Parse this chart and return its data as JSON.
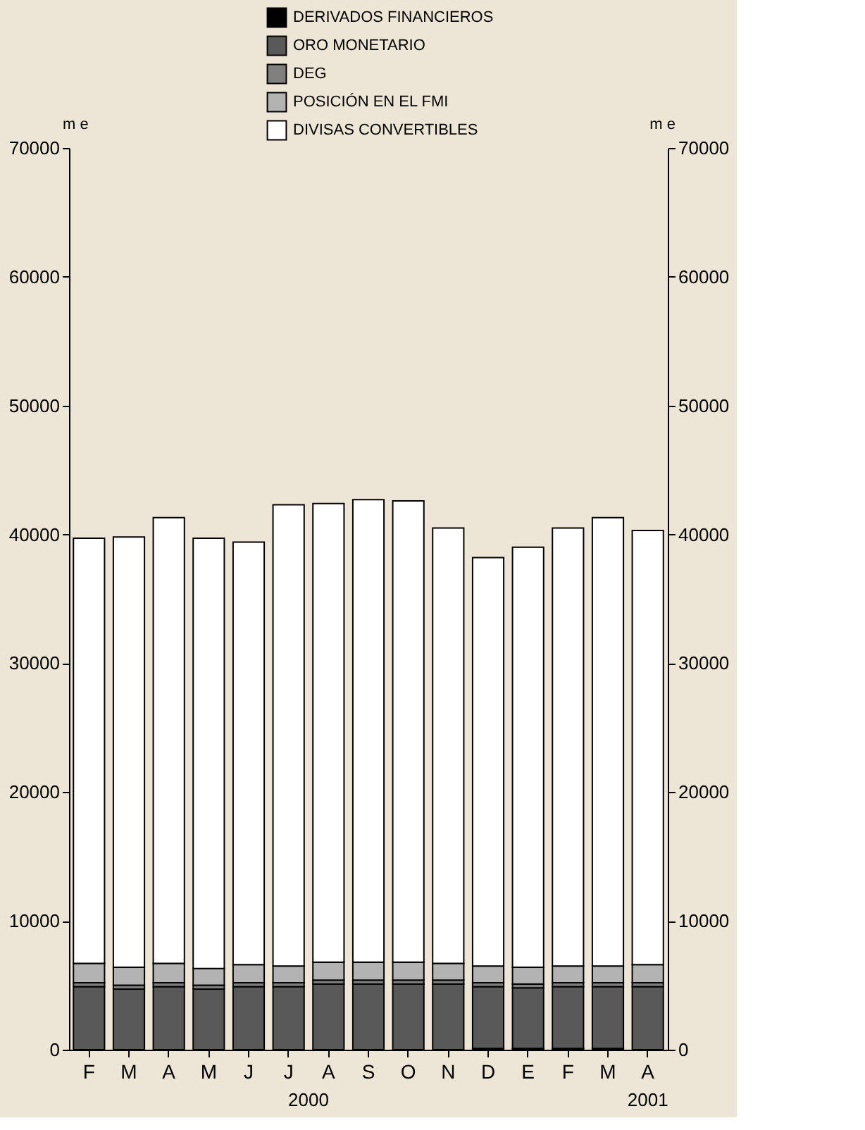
{
  "chart_data": {
    "type": "bar",
    "stacked": true,
    "categories": [
      "F",
      "M",
      "A",
      "M",
      "J",
      "J",
      "A",
      "S",
      "O",
      "N",
      "D",
      "E",
      "F",
      "M",
      "A"
    ],
    "series": [
      {
        "name": "DERIVADOS FINANCIEROS",
        "color": "#000000",
        "values": [
          0,
          0,
          0,
          0,
          0,
          0,
          0,
          0,
          0,
          0,
          100,
          100,
          100,
          100,
          0
        ]
      },
      {
        "name": "ORO MONETARIO",
        "color": "#595959",
        "values": [
          4900,
          4700,
          4900,
          4700,
          4900,
          4900,
          5100,
          5100,
          5100,
          5100,
          4800,
          4700,
          4800,
          4800,
          4900
        ]
      },
      {
        "name": "DEG",
        "color": "#808080",
        "values": [
          300,
          300,
          300,
          300,
          300,
          300,
          300,
          300,
          300,
          300,
          300,
          300,
          300,
          300,
          300
        ]
      },
      {
        "name": "POSICIÓN EN EL FMI",
        "color": "#b3b3b3",
        "values": [
          1500,
          1400,
          1500,
          1300,
          1400,
          1300,
          1400,
          1400,
          1400,
          1300,
          1300,
          1300,
          1300,
          1300,
          1400
        ]
      },
      {
        "name": "DIVISAS CONVERTIBLES",
        "color": "#ffffff",
        "values": [
          33000,
          33400,
          34600,
          33400,
          32800,
          35800,
          35600,
          35900,
          35800,
          33800,
          31700,
          32600,
          34000,
          34800,
          33700
        ]
      }
    ],
    "ylabel": "m e",
    "y2label": "m e",
    "ylim": [
      0,
      70000
    ],
    "yticks": [
      0,
      10000,
      20000,
      30000,
      40000,
      50000,
      60000,
      70000
    ],
    "y2lim": [
      0,
      70000
    ],
    "y2ticks": [
      0,
      10000,
      20000,
      30000,
      40000,
      50000,
      60000,
      70000
    ],
    "annotations": [
      "2000",
      "2001"
    ],
    "legend": "top",
    "grid": false
  }
}
